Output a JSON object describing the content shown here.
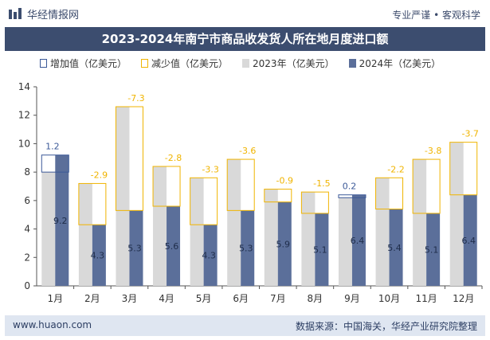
{
  "header": {
    "brand_name": "华经情报网",
    "slogan": "专业严谨 • 客观科学"
  },
  "chart_data": {
    "type": "bar",
    "title": "2023-2024年南宁市商品收发货人所在地月度进口额",
    "categories": [
      "1月",
      "2月",
      "3月",
      "4月",
      "5月",
      "6月",
      "7月",
      "8月",
      "9月",
      "10月",
      "11月",
      "12月"
    ],
    "ylim": [
      0,
      14
    ],
    "yticks": [
      0,
      2,
      4,
      6,
      8,
      10,
      12,
      14
    ],
    "legend_position": "top",
    "series": [
      {
        "name": "增加值（亿美元）",
        "kind": "increase",
        "color": "#3b5998"
      },
      {
        "name": "减少值（亿美元）",
        "kind": "decrease",
        "color": "#f0b400"
      },
      {
        "name": "2023年（亿美元）",
        "color": "#d9d9d9",
        "values": [
          8.0,
          7.2,
          12.6,
          8.4,
          7.6,
          8.9,
          6.8,
          6.6,
          6.2,
          7.6,
          8.9,
          10.1
        ]
      },
      {
        "name": "2024年（亿美元）",
        "color": "#5b6f9a",
        "values": [
          9.2,
          4.3,
          5.3,
          5.6,
          4.3,
          5.3,
          5.9,
          5.1,
          6.4,
          5.4,
          5.1,
          6.4
        ]
      }
    ],
    "change_labels": [
      "1.2",
      "-2.9",
      "-7.3",
      "-2.8",
      "-3.3",
      "-3.6",
      "-0.9",
      "-1.5",
      "0.2",
      "-2.2",
      "-3.8",
      "-3.7"
    ],
    "value_labels": [
      "9.2",
      "4.3",
      "5.3",
      "5.6",
      "4.3",
      "5.3",
      "5.9",
      "5.1",
      "6.4",
      "5.4",
      "5.1",
      "6.4"
    ],
    "colors": {
      "increase_text": "#3b5998",
      "decrease_text": "#f0b400",
      "value_text": "#1f2d4a"
    }
  },
  "footer": {
    "website": "www.huaon.com",
    "source_label": "数据来源：",
    "source_text": "中国海关，华经产业研究院整理"
  }
}
